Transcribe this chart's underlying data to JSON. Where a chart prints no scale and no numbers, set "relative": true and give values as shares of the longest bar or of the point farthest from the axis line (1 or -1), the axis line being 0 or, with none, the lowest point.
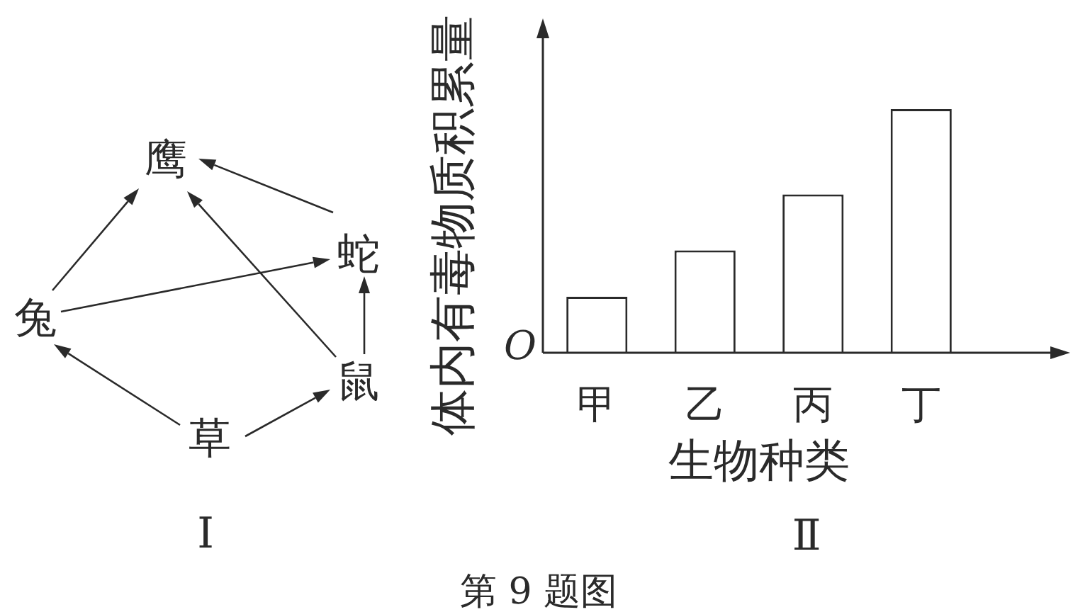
{
  "chart_data": [
    {
      "type": "other",
      "title": "Ⅰ",
      "annotations": [
        "鹰",
        "蛇",
        "兔",
        "鼠",
        "草"
      ]
    },
    {
      "type": "bar",
      "title": "Ⅱ",
      "categories": [
        "甲",
        "乙",
        "丙",
        "丁"
      ],
      "values": [
        0.23,
        0.42,
        0.65,
        1
      ],
      "color": "#ffffff",
      "relative": true,
      "xlabel": "生物种类",
      "ylabel": "体内有毒物质积累量",
      "annotations": [
        "O",
        "第 9 题图"
      ]
    }
  ]
}
